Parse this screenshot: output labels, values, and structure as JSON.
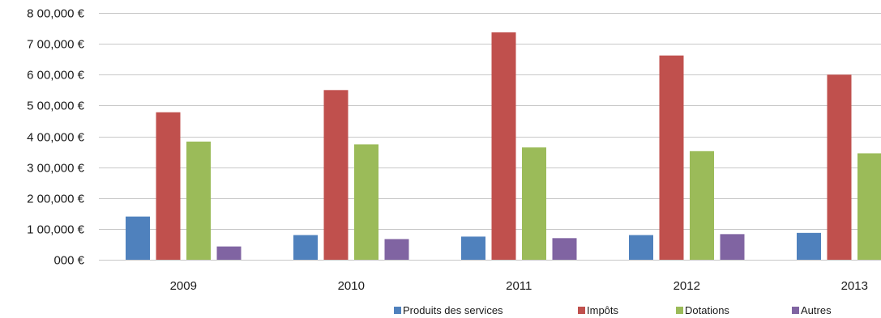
{
  "chart_data": {
    "type": "bar",
    "categories": [
      "2009",
      "2010",
      "2011",
      "2012",
      "2013"
    ],
    "series": [
      {
        "name": "Produits des services",
        "color": "#4F81BD",
        "values": [
          140000,
          80000,
          75000,
          80000,
          87000
        ]
      },
      {
        "name": "Impôts",
        "color": "#C0504D",
        "values": [
          478000,
          550000,
          737000,
          662000,
          600000
        ]
      },
      {
        "name": "Dotations",
        "color": "#9BBB59",
        "values": [
          383000,
          374000,
          364000,
          352000,
          345000
        ]
      },
      {
        "name": "Autres",
        "color": "#8064A2",
        "values": [
          43000,
          67000,
          70000,
          83000,
          0
        ]
      }
    ],
    "ylim": [
      0,
      800000
    ],
    "yticks": [
      0,
      100000,
      200000,
      300000,
      400000,
      500000,
      600000,
      700000,
      800000
    ],
    "ytick_labels": [
      "000 €",
      "1 00,000 €",
      "2 00,000 €",
      "3 00,000 €",
      "4 00,000 €",
      "5 00,000 €",
      "6 00,000 €",
      "7 00,000 €",
      "8 00,000 €"
    ],
    "grid": true,
    "gridline_color": "#C8C8C8",
    "legend_position": "bottom",
    "title": "",
    "xlabel": "",
    "ylabel": ""
  }
}
